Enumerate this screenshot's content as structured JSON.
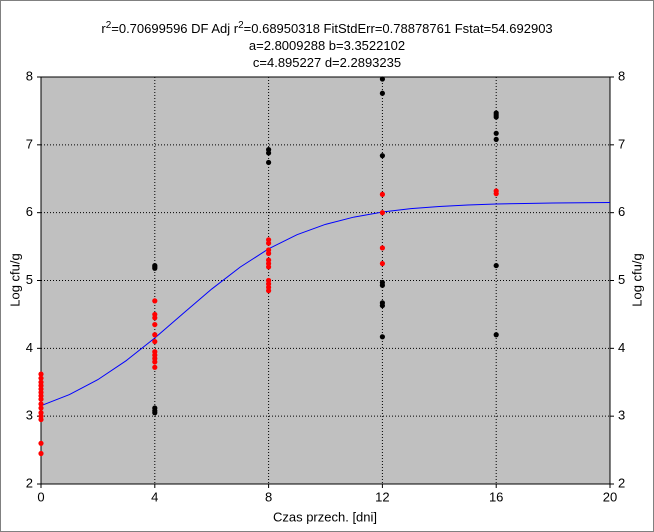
{
  "chart_data": {
    "type": "scatter",
    "title_lines": [
      [
        "r",
        "2",
        "=0.70699596  DF Adj r",
        "2",
        "=0.68950318  FitStdErr=0.78878761  Fstat=54.692903"
      ],
      [
        "a=2.8009288 b=3.3522102"
      ],
      [
        "c=4.895227 d=2.2893235"
      ]
    ],
    "xlabel": "Czas przech. [dni]",
    "ylabel": "Log cfu/g",
    "y2label": "Log cfu/g",
    "xlim": [
      0,
      20
    ],
    "xticks": [
      0,
      4,
      8,
      12,
      16,
      20
    ],
    "ylim": [
      2,
      8
    ],
    "yticks": [
      2,
      3,
      4,
      5,
      6,
      7,
      8
    ],
    "y2lim": [
      2,
      8
    ],
    "y2ticks": [
      2,
      3,
      4,
      5,
      6,
      7,
      8
    ],
    "grid": true,
    "background": "#c0c0c0",
    "series": [
      {
        "color": "#000000",
        "x": [
          4,
          4,
          4,
          4,
          4,
          4,
          8,
          8,
          8,
          12,
          12,
          12,
          12,
          12,
          12,
          12,
          12,
          16,
          16,
          16,
          16,
          16,
          16,
          16
        ],
        "values": [
          5.22,
          5.2,
          5.18,
          3.12,
          3.08,
          3.05,
          6.93,
          6.88,
          6.74,
          7.97,
          7.76,
          6.84,
          4.97,
          4.93,
          4.67,
          4.63,
          4.17,
          7.47,
          7.44,
          7.41,
          7.17,
          7.08,
          5.22,
          4.2
        ]
      },
      {
        "color": "#ff0000",
        "x": [
          0,
          0,
          0,
          0,
          0,
          0,
          0,
          0,
          0,
          0,
          0,
          0,
          0,
          0,
          0,
          4,
          4,
          4,
          4,
          4,
          4,
          4,
          4,
          4,
          4,
          4,
          8,
          8,
          8,
          8,
          8,
          8,
          8,
          8,
          8,
          8,
          8,
          12,
          12,
          12,
          12,
          16,
          16
        ],
        "values": [
          3.62,
          3.56,
          3.5,
          3.45,
          3.4,
          3.35,
          3.3,
          3.25,
          3.18,
          3.12,
          3.05,
          3.0,
          2.95,
          2.6,
          2.45,
          4.7,
          4.5,
          4.45,
          4.35,
          4.2,
          4.1,
          3.95,
          3.9,
          3.85,
          3.8,
          3.72,
          5.6,
          5.55,
          5.45,
          5.4,
          5.3,
          5.25,
          5.2,
          5.0,
          4.95,
          4.9,
          4.85,
          6.27,
          6.0,
          5.48,
          5.25,
          6.32,
          6.28
        ]
      }
    ],
    "fit": {
      "color": "#0000ff",
      "x": [
        0,
        1,
        2,
        3,
        4,
        5,
        6,
        7,
        8,
        9,
        10,
        11,
        12,
        13,
        14,
        15,
        16,
        17,
        18,
        19,
        20
      ],
      "values": [
        3.154,
        3.318,
        3.539,
        3.82,
        4.153,
        4.515,
        4.874,
        5.197,
        5.467,
        5.675,
        5.828,
        5.935,
        6.009,
        6.059,
        6.091,
        6.113,
        6.127,
        6.136,
        6.142,
        6.146,
        6.149
      ]
    }
  }
}
